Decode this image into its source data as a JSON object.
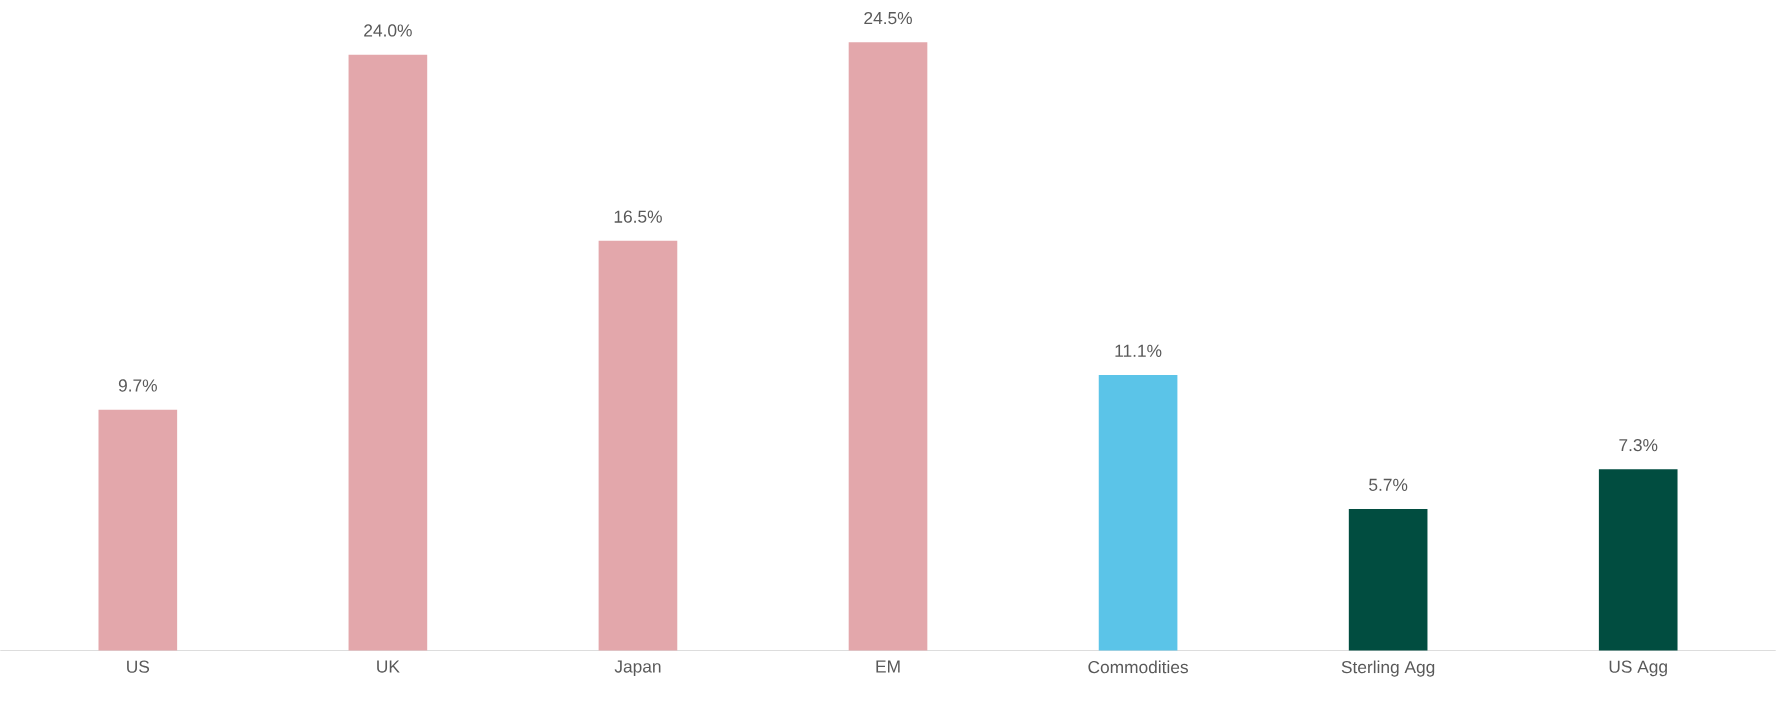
{
  "chart_data": {
    "type": "bar",
    "categories": [
      "US",
      "UK",
      "Japan",
      "EM",
      "Commodities",
      "Sterling Agg",
      "US Agg"
    ],
    "values": [
      9.7,
      24.0,
      16.5,
      24.5,
      11.1,
      5.7,
      7.3
    ],
    "value_labels": [
      "9.7%",
      "24.0%",
      "16.5%",
      "24.5%",
      "11.1%",
      "5.7%",
      "7.3%"
    ],
    "colors": [
      "#e3a7ab",
      "#e3a7ab",
      "#e3a7ab",
      "#e3a7ab",
      "#5bc4e8",
      "#014d40",
      "#014d40"
    ]
  }
}
